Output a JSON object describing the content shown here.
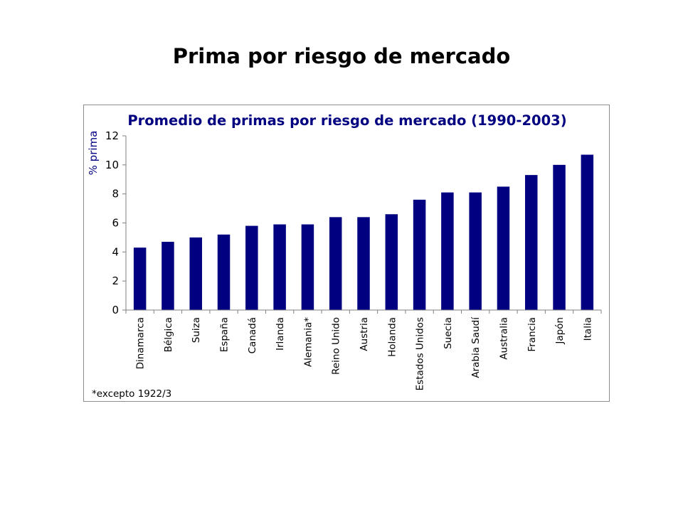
{
  "slide": {
    "title": "Prima por riesgo de mercado"
  },
  "chart_data": {
    "type": "bar",
    "title": "Promedio de primas por riesgo de mercado (1990-2003)",
    "xlabel": "",
    "ylabel": "% prima",
    "ylim": [
      0,
      12
    ],
    "yticks": [
      0,
      2,
      4,
      6,
      8,
      10,
      12
    ],
    "grid": false,
    "legend": "none",
    "colors": {
      "bar": "#000080",
      "title": "#000080",
      "axis": "#808080"
    },
    "categories": [
      "Dinamarca",
      "Bélgica",
      "Suiza",
      "España",
      "Canadá",
      "Irlanda",
      "Alemania*",
      "Reino Unido",
      "Austria",
      "Holanda",
      "Estados Unidos",
      "Suecia",
      "Arabia Saudí",
      "Australia",
      "Francia",
      "Japón",
      "Italia"
    ],
    "values": [
      4.3,
      4.7,
      5.0,
      5.2,
      5.8,
      5.9,
      5.9,
      6.4,
      6.4,
      6.6,
      7.6,
      8.1,
      8.1,
      8.5,
      9.3,
      10.0,
      10.7
    ],
    "footnote": "*excepto 1922/3"
  }
}
